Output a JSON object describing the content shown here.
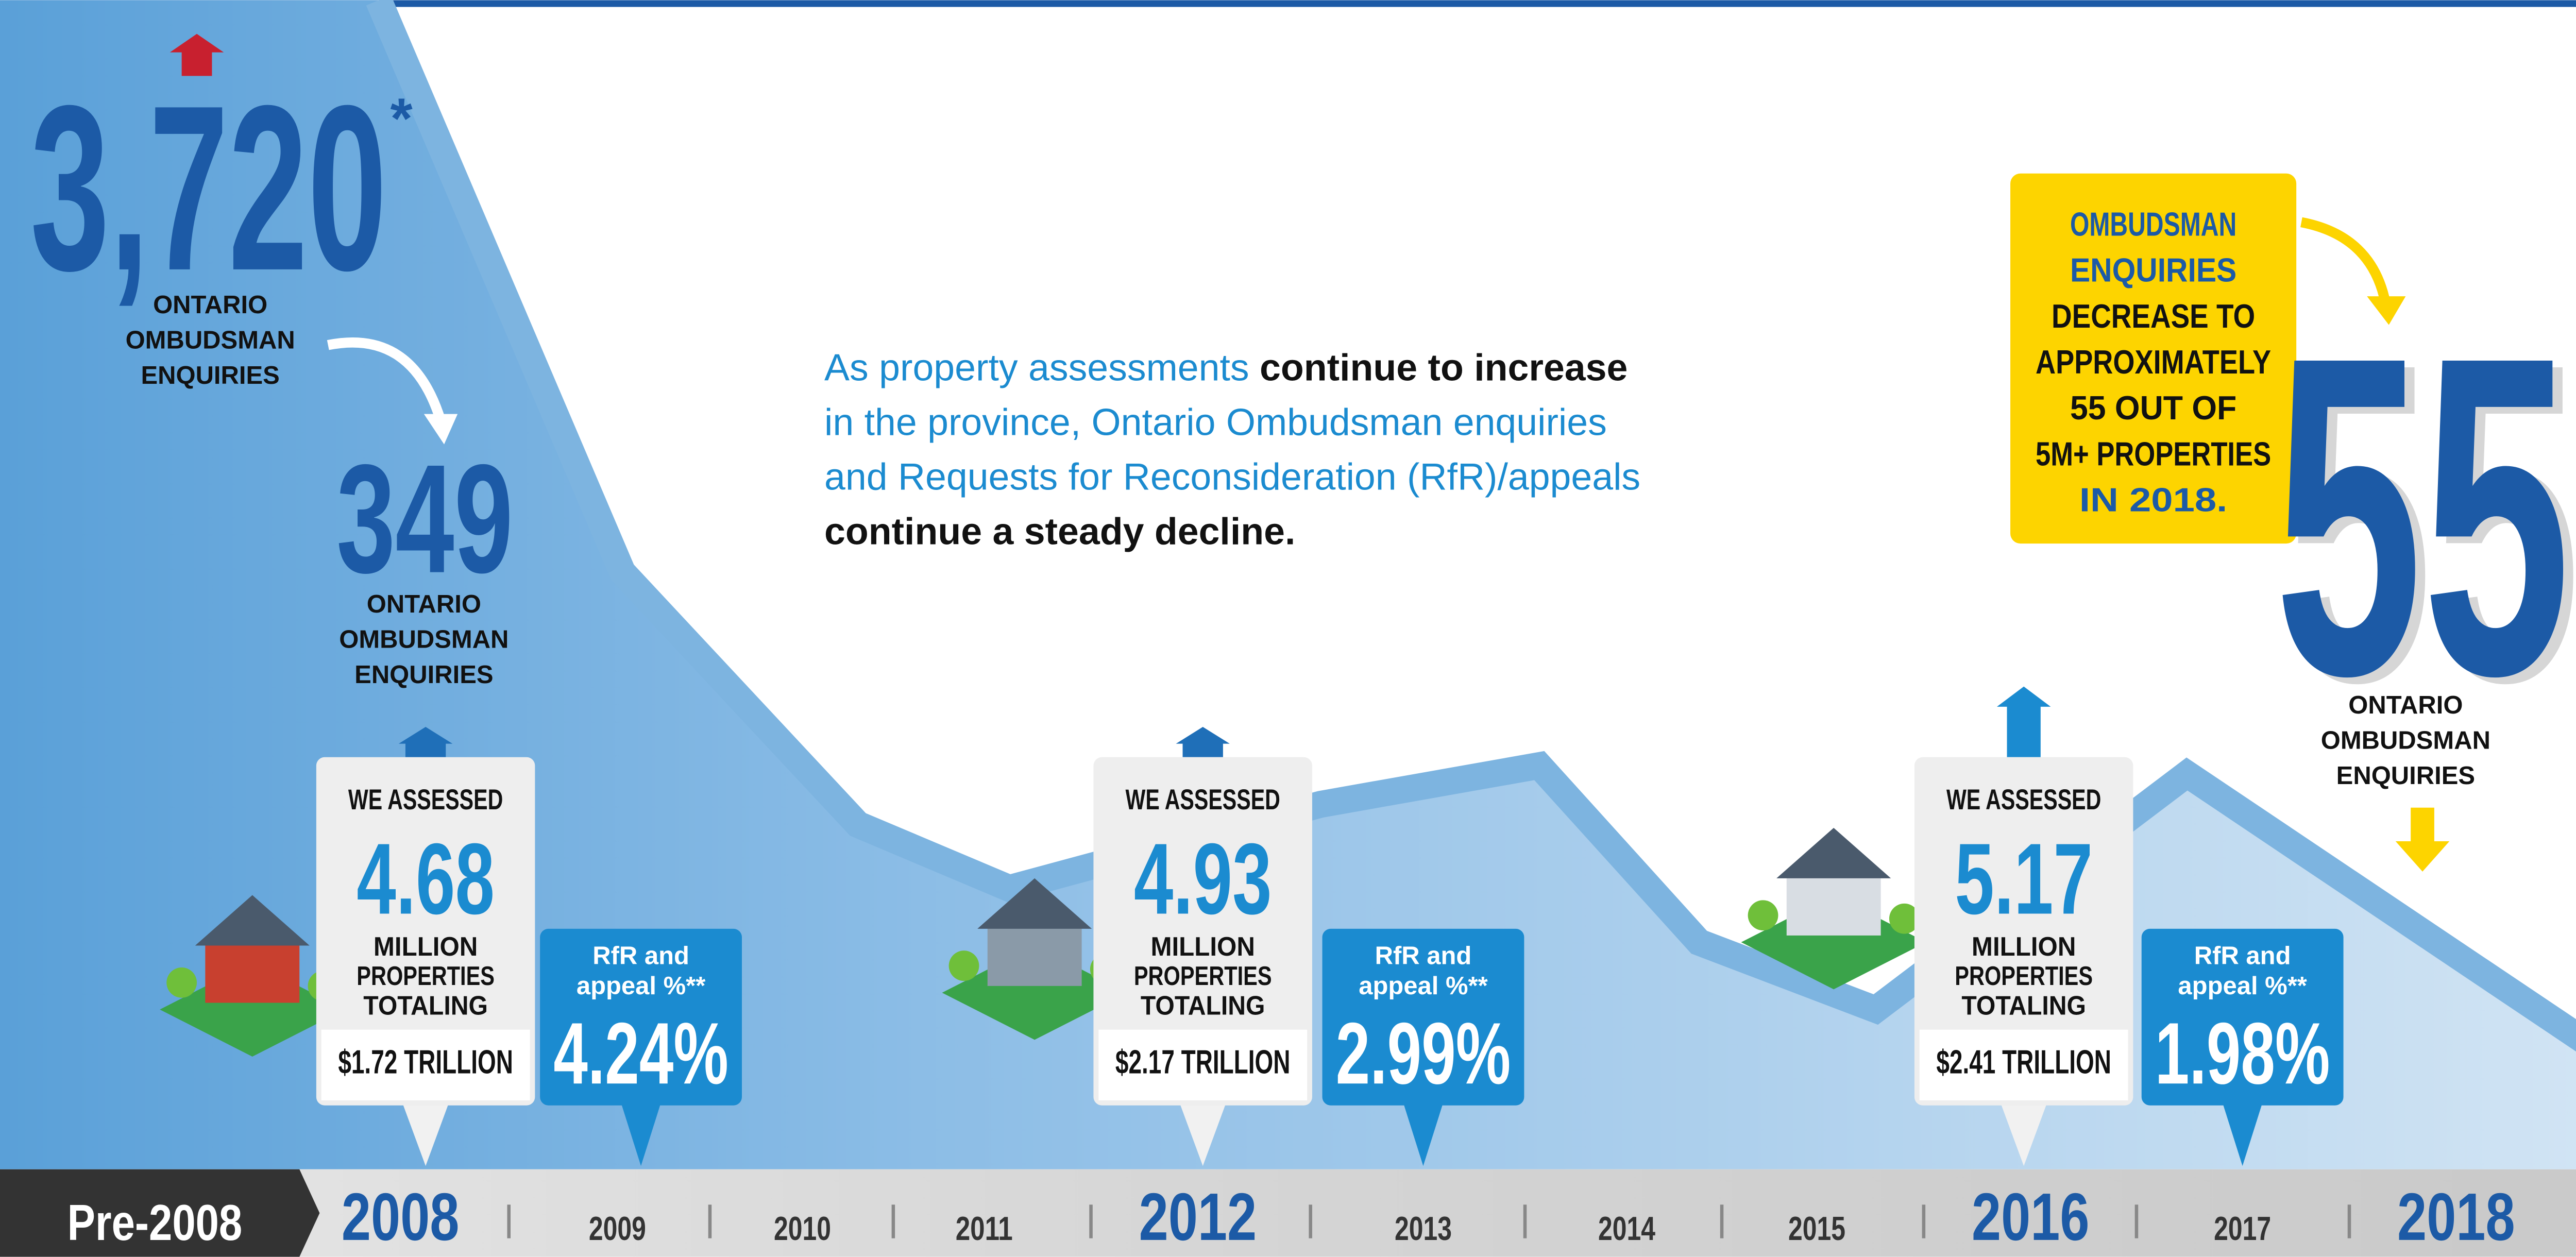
{
  "intro": {
    "lines": [
      [
        {
          "text": "As property assessments",
          "tone": "blue"
        },
        {
          "text": " continue to increase",
          "tone": "black"
        }
      ],
      [
        {
          "text": "in the province, Ontario Ombudsman enquiries",
          "tone": "blue"
        }
      ],
      [
        {
          "text": "and Requests for Reconsideration (RfR)/appeals",
          "tone": "blue"
        }
      ],
      [
        {
          "text": "continue a steady decline.",
          "tone": "black"
        }
      ]
    ]
  },
  "enquiries": [
    {
      "value": "3,720",
      "note": "*",
      "label": [
        "ONTARIO",
        "OMBUDSMAN",
        "ENQUIRIES"
      ]
    },
    {
      "value": "349",
      "label": [
        "ONTARIO",
        "OMBUDSMAN",
        "ENQUIRIES"
      ]
    },
    {
      "value": "55",
      "label": [
        "ONTARIO",
        "OMBUDSMAN",
        "ENQUIRIES"
      ]
    }
  ],
  "callout": {
    "lines": [
      {
        "text": "OMBUDSMAN",
        "tone": "blue"
      },
      {
        "text": "ENQUIRIES",
        "tone": "blue"
      },
      {
        "text": "DECREASE TO",
        "tone": "black"
      },
      {
        "text": "APPROXIMATELY",
        "tone": "black"
      },
      {
        "text": "55 OUT OF",
        "tone": "black"
      },
      {
        "text": "5M+ PROPERTIES",
        "tone": "black"
      },
      {
        "text": "IN 2018.",
        "tone": "blue"
      }
    ]
  },
  "assessments": [
    {
      "heading": "WE ASSESSED",
      "value": "4.68",
      "unit": [
        "MILLION",
        "PROPERTIES",
        "TOTALING"
      ],
      "total": "$1.72 TRILLION",
      "rfr_label": [
        "RfR and",
        "appeal %**"
      ],
      "rfr_value": "4.24%"
    },
    {
      "heading": "WE ASSESSED",
      "value": "4.93",
      "unit": [
        "MILLION",
        "PROPERTIES",
        "TOTALING"
      ],
      "total": "$2.17 TRILLION",
      "rfr_label": [
        "RfR and",
        "appeal %**"
      ],
      "rfr_value": "2.99%"
    },
    {
      "heading": "WE ASSESSED",
      "value": "5.17",
      "unit": [
        "MILLION",
        "PROPERTIES",
        "TOTALING"
      ],
      "total": "$2.41 TRILLION",
      "rfr_label": [
        "RfR and",
        "appeal %**"
      ],
      "rfr_value": "1.98%"
    }
  ],
  "timeline": [
    "Pre-2008",
    "2008",
    "2009",
    "2010",
    "2011",
    "2012",
    "2013",
    "2014",
    "2015",
    "2016",
    "2017",
    "2018"
  ]
}
